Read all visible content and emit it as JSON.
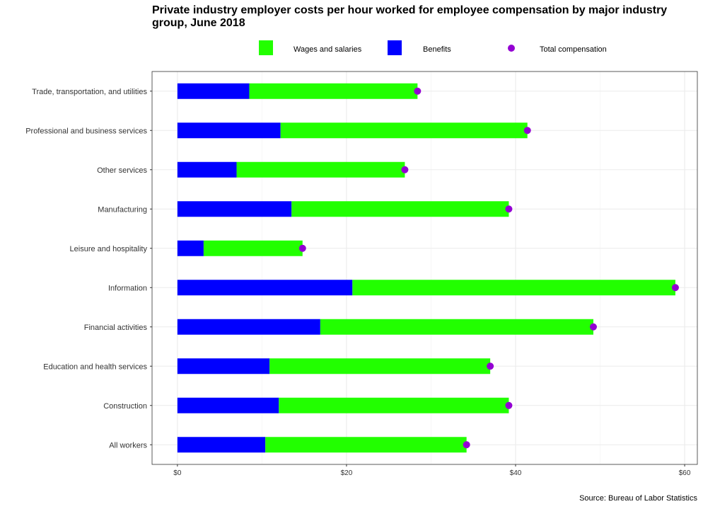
{
  "chart_data": {
    "type": "bar",
    "orientation": "horizontal",
    "stacked": true,
    "title": "Private industry employer costs per hour worked for employee compensation by major industry group, June 2018",
    "source": "Source: Bureau of Labor Statistics",
    "categories": [
      "Trade, transportation, and utilities",
      "Professional and business services",
      "Other services",
      "Manufacturing",
      "Leisure and hospitality",
      "Information",
      "Financial activities",
      "Education and health services",
      "Construction",
      "All workers"
    ],
    "series": [
      {
        "name": "Benefits",
        "color": "#0000ff",
        "values": [
          8.5,
          12.2,
          7.0,
          13.5,
          3.1,
          20.7,
          16.9,
          10.9,
          12.0,
          10.4
        ]
      },
      {
        "name": "Wages and salaries",
        "color": "#22ff00",
        "values": [
          19.9,
          29.2,
          19.9,
          25.7,
          11.7,
          38.2,
          32.3,
          26.1,
          27.2,
          23.8
        ]
      }
    ],
    "points": {
      "name": "Total compensation",
      "color": "#9400d3",
      "values": [
        28.4,
        41.4,
        26.9,
        39.2,
        14.8,
        58.9,
        49.2,
        37.0,
        39.2,
        34.2
      ]
    },
    "legend": {
      "position": "top",
      "items": [
        {
          "label": "Wages and salaries",
          "shape": "square",
          "color": "#22ff00"
        },
        {
          "label": "Benefits",
          "shape": "square",
          "color": "#0000ff"
        },
        {
          "label": "Total compensation",
          "shape": "circle",
          "color": "#9400d3"
        }
      ]
    },
    "xlim": [
      -3,
      61.5
    ],
    "xticks": [
      0,
      20,
      40,
      60
    ],
    "xtick_labels": [
      "$0",
      "$20",
      "$40",
      "$60"
    ],
    "xlabel": "",
    "ylabel": "",
    "grid": true
  }
}
